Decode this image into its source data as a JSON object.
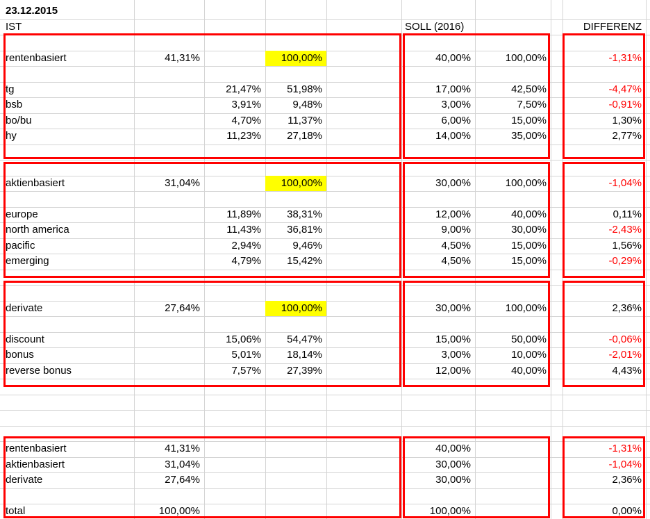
{
  "title_date": "23.12.2015",
  "headers": {
    "ist": "IST",
    "soll": "SOLL (2016)",
    "differenz": "DIFFERENZ"
  },
  "colors": {
    "highlight": "#ffff00",
    "negative": "#ff0000",
    "box_border": "#ff0000",
    "gridline": "#d4d4d4"
  },
  "sections": [
    {
      "label": "rentenbasiert",
      "ist_total": "41,31%",
      "ist_share_total": "100,00%",
      "soll_total": "40,00%",
      "soll_share_total": "100,00%",
      "differenz": "-1,31%",
      "rows": [
        {
          "label": "tg",
          "ist": "21,47%",
          "ist_share": "51,98%",
          "soll": "17,00%",
          "soll_share": "42,50%",
          "differenz": "-4,47%"
        },
        {
          "label": "bsb",
          "ist": "3,91%",
          "ist_share": "9,48%",
          "soll": "3,00%",
          "soll_share": "7,50%",
          "differenz": "-0,91%"
        },
        {
          "label": "bo/bu",
          "ist": "4,70%",
          "ist_share": "11,37%",
          "soll": "6,00%",
          "soll_share": "15,00%",
          "differenz": "1,30%"
        },
        {
          "label": "hy",
          "ist": "11,23%",
          "ist_share": "27,18%",
          "soll": "14,00%",
          "soll_share": "35,00%",
          "differenz": "2,77%"
        }
      ]
    },
    {
      "label": "aktienbasiert",
      "ist_total": "31,04%",
      "ist_share_total": "100,00%",
      "soll_total": "30,00%",
      "soll_share_total": "100,00%",
      "differenz": "-1,04%",
      "rows": [
        {
          "label": "europe",
          "ist": "11,89%",
          "ist_share": "38,31%",
          "soll": "12,00%",
          "soll_share": "40,00%",
          "differenz": "0,11%"
        },
        {
          "label": "north america",
          "ist": "11,43%",
          "ist_share": "36,81%",
          "soll": "9,00%",
          "soll_share": "30,00%",
          "differenz": "-2,43%"
        },
        {
          "label": "pacific",
          "ist": "2,94%",
          "ist_share": "9,46%",
          "soll": "4,50%",
          "soll_share": "15,00%",
          "differenz": "1,56%"
        },
        {
          "label": "emerging",
          "ist": "4,79%",
          "ist_share": "15,42%",
          "soll": "4,50%",
          "soll_share": "15,00%",
          "differenz": "-0,29%"
        }
      ]
    },
    {
      "label": "derivate",
      "ist_total": "27,64%",
      "ist_share_total": "100,00%",
      "soll_total": "30,00%",
      "soll_share_total": "100,00%",
      "differenz": "2,36%",
      "rows": [
        {
          "label": "discount",
          "ist": "15,06%",
          "ist_share": "54,47%",
          "soll": "15,00%",
          "soll_share": "50,00%",
          "differenz": "-0,06%"
        },
        {
          "label": "bonus",
          "ist": "5,01%",
          "ist_share": "18,14%",
          "soll": "3,00%",
          "soll_share": "10,00%",
          "differenz": "-2,01%"
        },
        {
          "label": "reverse bonus",
          "ist": "7,57%",
          "ist_share": "27,39%",
          "soll": "12,00%",
          "soll_share": "40,00%",
          "differenz": "4,43%"
        }
      ]
    }
  ],
  "summary": {
    "rows": [
      {
        "label": "rentenbasiert",
        "ist": "41,31%",
        "soll": "40,00%",
        "differenz": "-1,31%"
      },
      {
        "label": "aktienbasiert",
        "ist": "31,04%",
        "soll": "30,00%",
        "differenz": "-1,04%"
      },
      {
        "label": "derivate",
        "ist": "27,64%",
        "soll": "30,00%",
        "differenz": "2,36%"
      }
    ],
    "total": {
      "label": "total",
      "ist": "100,00%",
      "soll": "100,00%",
      "differenz": "0,00%"
    }
  }
}
